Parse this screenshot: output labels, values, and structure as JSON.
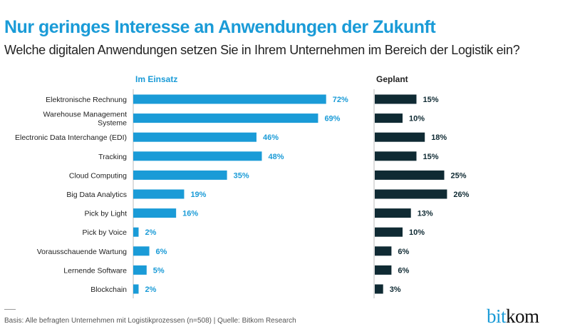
{
  "chart_data": {
    "type": "bar",
    "orientation": "horizontal",
    "title": "Nur geringes Interesse an Anwendungen der Zukunft",
    "subtitle": "Welche digitalen Anwendungen setzen Sie in Ihrem Unternehmen im Bereich der Logistik ein?",
    "categories": [
      "Elektronische Rechnung",
      "Warehouse Management Systeme",
      "Electronic Data Interchange (EDI)",
      "Tracking",
      "Cloud Computing",
      "Big Data Analytics",
      "Pick by Light",
      "Pick by Voice",
      "Vorausschauende Wartung",
      "Lernende Software",
      "Blockchain"
    ],
    "series": [
      {
        "name": "Im Einsatz",
        "color": "#1a9bd7",
        "values": [
          72,
          69,
          46,
          48,
          35,
          19,
          16,
          2,
          6,
          5,
          2
        ]
      },
      {
        "name": "Geplant",
        "color": "#0f2a33",
        "values": [
          15,
          10,
          18,
          15,
          25,
          26,
          13,
          10,
          6,
          6,
          3
        ]
      }
    ],
    "unit": "%",
    "grid": false
  },
  "footer": {
    "basis": "Basis: Alle befragten Unternehmen mit Logistikprozessen (n=508) | Quelle: Bitkom Research"
  },
  "logo": {
    "part1": "bit",
    "part2": "kom"
  }
}
